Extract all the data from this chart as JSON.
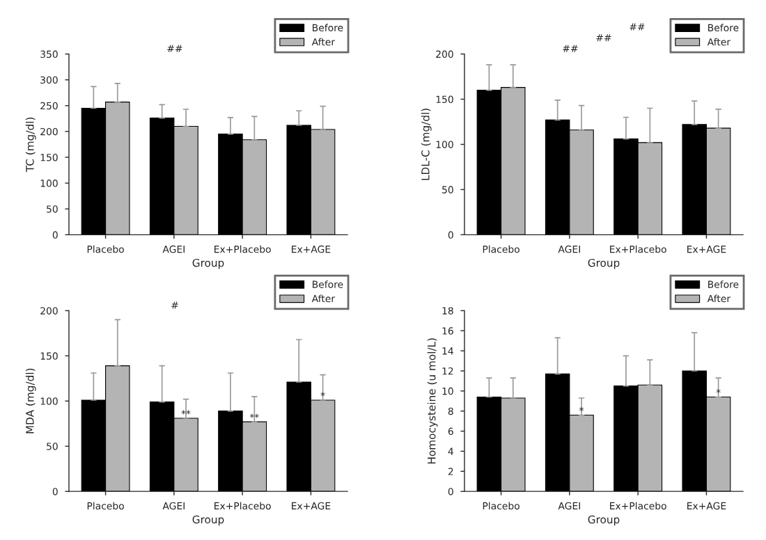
{
  "chart_data": [
    {
      "type": "bar",
      "xlabel": "Group",
      "ylabel": "TC (mg/dl)",
      "categories": [
        "Placebo",
        "AGEI",
        "Ex+Placebo",
        "Ex+AGE"
      ],
      "ylim": [
        0,
        350
      ],
      "yticks": [
        0,
        50,
        100,
        150,
        200,
        250,
        300,
        350
      ],
      "legend": "top right",
      "grid": false,
      "series": [
        {
          "name": "Before",
          "color": "#000000",
          "values": [
            245,
            226,
            195,
            212
          ],
          "errors": [
            [
              245,
              287
            ],
            [
              226,
              252
            ],
            [
              195,
              227
            ],
            [
              212,
              240
            ]
          ]
        },
        {
          "name": "After",
          "color": "#b4b4b4",
          "values": [
            257,
            210,
            184,
            204
          ],
          "errors": [
            [
              257,
              293
            ],
            [
              210,
              243
            ],
            [
              184,
              229
            ],
            [
              204,
              249
            ]
          ]
        }
      ],
      "annotations": [
        "##"
      ]
    },
    {
      "type": "bar",
      "xlabel": "Group",
      "ylabel": "LDL-C (mg/dl)",
      "categories": [
        "Placebo",
        "AGEI",
        "Ex+Placebo",
        "Ex+AGE"
      ],
      "ylim": [
        0,
        200
      ],
      "yticks": [
        0,
        50,
        100,
        150,
        200
      ],
      "legend": "top right",
      "grid": false,
      "series": [
        {
          "name": "Before",
          "color": "#000000",
          "values": [
            160,
            127,
            106,
            122
          ],
          "errors": [
            [
              160,
              188
            ],
            [
              127,
              149
            ],
            [
              106,
              130
            ],
            [
              122,
              148
            ]
          ]
        },
        {
          "name": "After",
          "color": "#b4b4b4",
          "values": [
            163,
            116,
            102,
            118
          ],
          "errors": [
            [
              163,
              188
            ],
            [
              116,
              143
            ],
            [
              102,
              140
            ],
            [
              118,
              139
            ]
          ]
        }
      ],
      "annotations": [
        "##",
        "##",
        "##"
      ]
    },
    {
      "type": "bar",
      "xlabel": "Group",
      "ylabel": "MDA (mg/dl)",
      "categories": [
        "Placebo",
        "AGEI",
        "Ex+Placebo",
        "Ex+AGE"
      ],
      "ylim": [
        0,
        200
      ],
      "yticks": [
        0,
        50,
        100,
        150,
        200
      ],
      "legend": "top right",
      "grid": false,
      "series": [
        {
          "name": "Before",
          "color": "#000000",
          "values": [
            101,
            99,
            89,
            121
          ],
          "errors": [
            [
              101,
              131
            ],
            [
              99,
              139
            ],
            [
              89,
              131
            ],
            [
              121,
              168
            ]
          ]
        },
        {
          "name": "After",
          "color": "#b4b4b4",
          "values": [
            139,
            81,
            77,
            101
          ],
          "errors": [
            [
              139,
              190
            ],
            [
              81,
              102
            ],
            [
              77,
              105
            ],
            [
              101,
              129
            ]
          ]
        }
      ],
      "annotations": [
        "#",
        {
          "text": "**",
          "x": "AGEI",
          "y": 81
        },
        {
          "text": "**",
          "x": "Ex+Placebo",
          "y": 77
        },
        {
          "text": "*",
          "x": "Ex+AGE",
          "y": 101
        }
      ]
    },
    {
      "type": "bar",
      "xlabel": "Group",
      "ylabel": "Homocysteine (u mol/L)",
      "categories": [
        "Placebo",
        "AGEI",
        "Ex+Placebo",
        "Ex+AGE"
      ],
      "ylim": [
        0,
        18
      ],
      "yticks": [
        0,
        2,
        4,
        6,
        8,
        10,
        12,
        14,
        16,
        18
      ],
      "legend": "top right",
      "grid": false,
      "series": [
        {
          "name": "Before",
          "color": "#000000",
          "values": [
            9.4,
            11.7,
            10.5,
            12.0
          ],
          "errors": [
            [
              9.4,
              11.3
            ],
            [
              11.7,
              15.3
            ],
            [
              10.5,
              13.5
            ],
            [
              12.0,
              15.8
            ]
          ]
        },
        {
          "name": "After",
          "color": "#b4b4b4",
          "values": [
            9.3,
            7.6,
            10.6,
            9.4
          ],
          "errors": [
            [
              9.3,
              11.3
            ],
            [
              7.6,
              9.3
            ],
            [
              10.6,
              13.1
            ],
            [
              9.4,
              11.3
            ]
          ]
        }
      ],
      "annotations": [
        {
          "text": "*",
          "x": "AGEI",
          "y": 7.6
        },
        {
          "text": "*",
          "x": "Ex+AGE",
          "y": 9.4
        }
      ]
    }
  ]
}
